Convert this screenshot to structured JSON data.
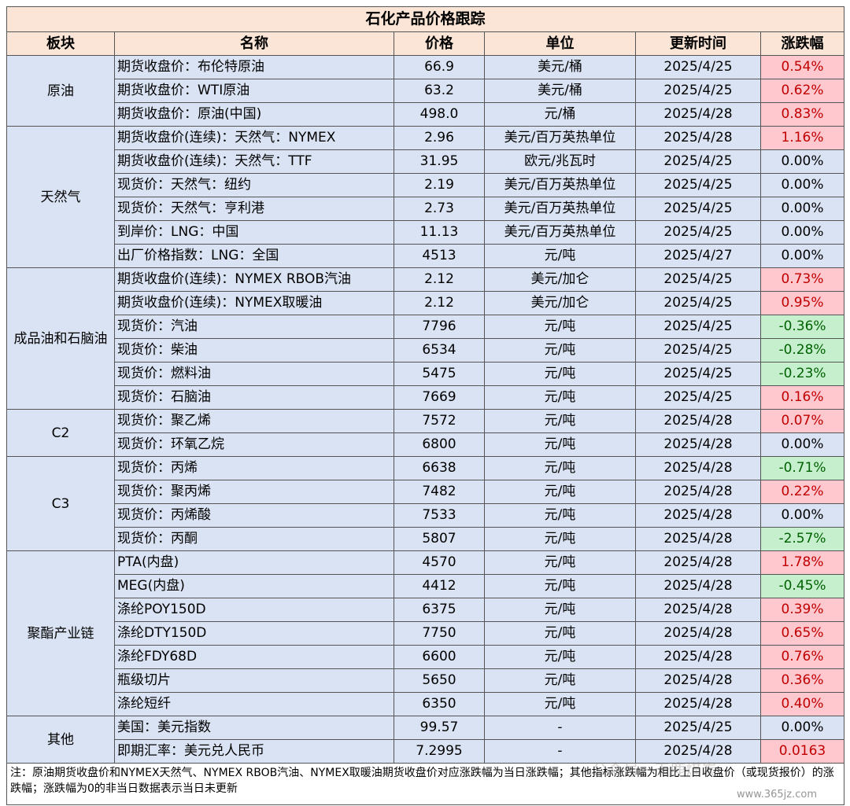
{
  "title": "石化产品价格跟踪",
  "headers": [
    "板块",
    "名称",
    "价格",
    "单位",
    "更新时间",
    "涨跌幅"
  ],
  "groups": [
    {
      "sector": "原油",
      "rows": [
        {
          "name": "期货收盘价：布伦特原油",
          "price": "66.9",
          "unit": "美元/桶",
          "date": "2025/4/25",
          "change": "0.54%",
          "dir": "up"
        },
        {
          "name": "期货收盘价：WTI原油",
          "price": "63.2",
          "unit": "美元/桶",
          "date": "2025/4/25",
          "change": "0.62%",
          "dir": "up"
        },
        {
          "name": "期货收盘价：原油(中国)",
          "price": "498.0",
          "unit": "元/桶",
          "date": "2025/4/28",
          "change": "0.83%",
          "dir": "up"
        }
      ]
    },
    {
      "sector": "天然气",
      "rows": [
        {
          "name": "期货收盘价(连续)：天然气：NYMEX",
          "price": "2.96",
          "unit": "美元/百万英热单位",
          "date": "2025/4/28",
          "change": "1.16%",
          "dir": "up"
        },
        {
          "name": "期货收盘价(连续)：天然气：TTF",
          "price": "31.95",
          "unit": "欧元/兆瓦时",
          "date": "2025/4/25",
          "change": "0.00%",
          "dir": "flat"
        },
        {
          "name": "现货价：天然气：纽约",
          "price": "2.19",
          "unit": "美元/百万英热单位",
          "date": "2025/4/25",
          "change": "0.00%",
          "dir": "flat"
        },
        {
          "name": "现货价：天然气：亨利港",
          "price": "2.73",
          "unit": "美元/百万英热单位",
          "date": "2025/4/25",
          "change": "0.00%",
          "dir": "flat"
        },
        {
          "name": "到岸价：LNG：中国",
          "price": "11.13",
          "unit": "美元/百万英热单位",
          "date": "2025/4/25",
          "change": "0.00%",
          "dir": "flat"
        },
        {
          "name": "出厂价格指数：LNG：全国",
          "price": "4513",
          "unit": "元/吨",
          "date": "2025/4/27",
          "change": "0.00%",
          "dir": "flat"
        }
      ]
    },
    {
      "sector": "成品油和石脑油",
      "rows": [
        {
          "name": "期货收盘价(连续)：NYMEX RBOB汽油",
          "price": "2.12",
          "unit": "美元/加仑",
          "date": "2025/4/25",
          "change": "0.73%",
          "dir": "up"
        },
        {
          "name": "期货收盘价(连续)：NYMEX取暖油",
          "price": "2.12",
          "unit": "美元/加仑",
          "date": "2025/4/25",
          "change": "0.95%",
          "dir": "up"
        },
        {
          "name": "现货价：汽油",
          "price": "7796",
          "unit": "元/吨",
          "date": "2025/4/25",
          "change": "-0.36%",
          "dir": "down"
        },
        {
          "name": "现货价：柴油",
          "price": "6534",
          "unit": "元/吨",
          "date": "2025/4/25",
          "change": "-0.28%",
          "dir": "down"
        },
        {
          "name": "现货价：燃料油",
          "price": "5475",
          "unit": "元/吨",
          "date": "2025/4/25",
          "change": "-0.23%",
          "dir": "down"
        },
        {
          "name": "现货价：石脑油",
          "price": "7669",
          "unit": "元/吨",
          "date": "2025/4/25",
          "change": "0.16%",
          "dir": "up"
        }
      ]
    },
    {
      "sector": "C2",
      "rows": [
        {
          "name": "现货价：聚乙烯",
          "price": "7572",
          "unit": "元/吨",
          "date": "2025/4/28",
          "change": "0.07%",
          "dir": "up"
        },
        {
          "name": "现货价：环氧乙烷",
          "price": "6800",
          "unit": "元/吨",
          "date": "2025/4/28",
          "change": "0.00%",
          "dir": "flat"
        }
      ]
    },
    {
      "sector": "C3",
      "rows": [
        {
          "name": "现货价：丙烯",
          "price": "6638",
          "unit": "元/吨",
          "date": "2025/4/28",
          "change": "-0.71%",
          "dir": "down"
        },
        {
          "name": "现货价：聚丙烯",
          "price": "7482",
          "unit": "元/吨",
          "date": "2025/4/28",
          "change": "0.22%",
          "dir": "up"
        },
        {
          "name": "现货价：丙烯酸",
          "price": "7533",
          "unit": "元/吨",
          "date": "2025/4/28",
          "change": "0.00%",
          "dir": "flat"
        },
        {
          "name": "现货价：丙酮",
          "price": "5807",
          "unit": "元/吨",
          "date": "2025/4/28",
          "change": "-2.57%",
          "dir": "down"
        }
      ]
    },
    {
      "sector": "聚酯产业链",
      "rows": [
        {
          "name": "PTA(内盘)",
          "price": "4570",
          "unit": "元/吨",
          "date": "2025/4/28",
          "change": "1.78%",
          "dir": "up"
        },
        {
          "name": "MEG(内盘)",
          "price": "4412",
          "unit": "元/吨",
          "date": "2025/4/28",
          "change": "-0.45%",
          "dir": "down"
        },
        {
          "name": "涤纶POY150D",
          "price": "6375",
          "unit": "元/吨",
          "date": "2025/4/28",
          "change": "0.39%",
          "dir": "up"
        },
        {
          "name": "涤纶DTY150D",
          "price": "7750",
          "unit": "元/吨",
          "date": "2025/4/28",
          "change": "0.65%",
          "dir": "up"
        },
        {
          "name": "涤纶FDY68D",
          "price": "6600",
          "unit": "元/吨",
          "date": "2025/4/28",
          "change": "0.76%",
          "dir": "up"
        },
        {
          "name": "瓶级切片",
          "price": "5650",
          "unit": "元/吨",
          "date": "2025/4/28",
          "change": "0.36%",
          "dir": "up"
        },
        {
          "name": "涤纶短纤",
          "price": "6350",
          "unit": "元/吨",
          "date": "2025/4/28",
          "change": "0.40%",
          "dir": "up"
        }
      ]
    },
    {
      "sector": "其他",
      "rows": [
        {
          "name": "美国：美元指数",
          "price": "99.57",
          "unit": "-",
          "date": "2025/4/25",
          "change": "0.00%",
          "dir": "flat"
        },
        {
          "name": "即期汇率：美元兑人民币",
          "price": "7.2995",
          "unit": "-",
          "date": "2025/4/28",
          "change": "0.0163",
          "dir": "up"
        }
      ]
    }
  ],
  "note": "注：原油期货收盘价和NYMEX天然气、NYMEX RBOB汽油、NYMEX取暖油期货收盘价对应涨跌幅为当日涨跌幅；其他指标涨跌幅为相比上日收盘价（或现货报价）的涨跌幅；涨跌幅为0的非当日数据表示当日未更新",
  "watermark": "公众号 · 天鹿煤炭",
  "watermark_url": "www.365jz.com",
  "colors": {
    "header_bg": "#fbe5d6",
    "row_bg": "#dae3f3",
    "up_bg": "#ffc7ce",
    "up_text": "#c00000",
    "down_bg": "#c6efce",
    "down_text": "#006100"
  }
}
